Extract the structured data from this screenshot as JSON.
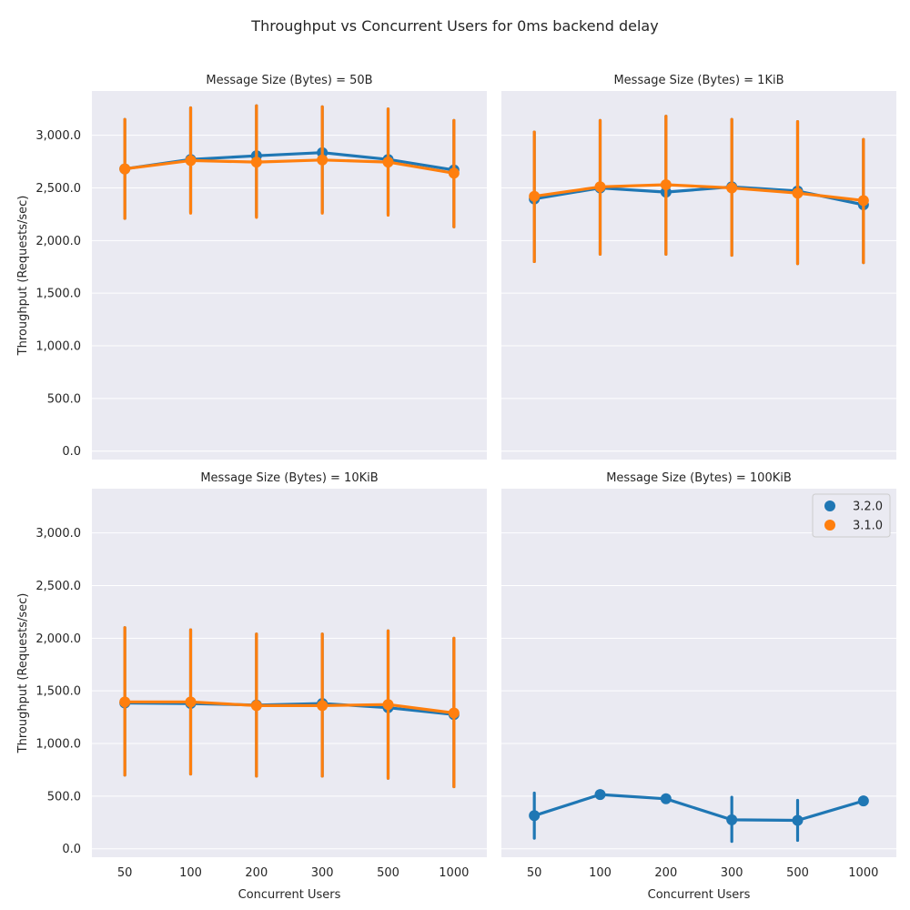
{
  "chart_data": {
    "type": "line",
    "title": "Throughput vs Concurrent Users for 0ms backend delay",
    "xlabel": "Concurrent Users",
    "ylabel": "Throughput (Requests/sec)",
    "categories": [
      "50",
      "100",
      "200",
      "300",
      "500",
      "1000"
    ],
    "yticks": [
      "0.0",
      "500.0",
      "1,000.0",
      "1,500.0",
      "2,000.0",
      "2,500.0",
      "3,000.0"
    ],
    "ylim": [
      -80,
      3420
    ],
    "grid": true,
    "legend_position": "top-right",
    "series_styles": [
      {
        "name": "3.2.0",
        "color": "#1f77b4"
      },
      {
        "name": "3.1.0",
        "color": "#ff7f0e"
      }
    ],
    "panels": [
      {
        "title": "Message Size (Bytes) = 50B",
        "series": [
          {
            "name": "3.2.0",
            "values": [
              2680,
              2770,
              2805,
              2835,
              2770,
              2670
            ],
            "ci": [
              [
                2210,
                3150
              ],
              [
                2270,
                3260
              ],
              [
                2230,
                3280
              ],
              [
                2270,
                3270
              ],
              [
                2250,
                3250
              ],
              [
                2130,
                3140
              ]
            ]
          },
          {
            "name": "3.1.0",
            "values": [
              2680,
              2760,
              2745,
              2765,
              2745,
              2640
            ],
            "ci": [
              [
                2210,
                3150
              ],
              [
                2260,
                3260
              ],
              [
                2220,
                3280
              ],
              [
                2260,
                3270
              ],
              [
                2240,
                3250
              ],
              [
                2130,
                3140
              ]
            ]
          }
        ]
      },
      {
        "title": "Message Size (Bytes) = 1KiB",
        "series": [
          {
            "name": "3.2.0",
            "values": [
              2395,
              2500,
              2460,
              2510,
              2470,
              2340
            ],
            "ci": [
              [
                1800,
                3030
              ],
              [
                1870,
                3140
              ],
              [
                1870,
                3180
              ],
              [
                1860,
                3150
              ],
              [
                1780,
                3130
              ],
              [
                1790,
                2960
              ]
            ]
          },
          {
            "name": "3.1.0",
            "values": [
              2420,
              2510,
              2530,
              2500,
              2450,
              2380
            ],
            "ci": [
              [
                1800,
                3030
              ],
              [
                1870,
                3140
              ],
              [
                1870,
                3180
              ],
              [
                1860,
                3150
              ],
              [
                1780,
                3130
              ],
              [
                1790,
                2960
              ]
            ]
          }
        ]
      },
      {
        "title": "Message Size (Bytes) = 10KiB",
        "series": [
          {
            "name": "3.2.0",
            "values": [
              1385,
              1380,
              1365,
              1380,
              1340,
              1275
            ],
            "ci": [
              [
                700,
                2100
              ],
              [
                710,
                2080
              ],
              [
                690,
                2040
              ],
              [
                690,
                2040
              ],
              [
                670,
                2070
              ],
              [
                590,
                2000
              ]
            ]
          },
          {
            "name": "3.1.0",
            "values": [
              1395,
              1395,
              1360,
              1360,
              1370,
              1290
            ],
            "ci": [
              [
                700,
                2100
              ],
              [
                710,
                2080
              ],
              [
                690,
                2040
              ],
              [
                690,
                2040
              ],
              [
                670,
                2070
              ],
              [
                590,
                2000
              ]
            ]
          }
        ]
      },
      {
        "title": "Message Size (Bytes) = 100KiB",
        "legend": [
          "3.2.0",
          "3.1.0"
        ],
        "series": [
          {
            "name": "3.2.0",
            "values": [
              315,
              515,
              475,
              275,
              270,
              455
            ],
            "ci": [
              [
                100,
                530
              ],
              [
                515,
                515
              ],
              [
                475,
                475
              ],
              [
                70,
                490
              ],
              [
                80,
                460
              ],
              [
                455,
                455
              ]
            ]
          }
        ]
      }
    ]
  }
}
